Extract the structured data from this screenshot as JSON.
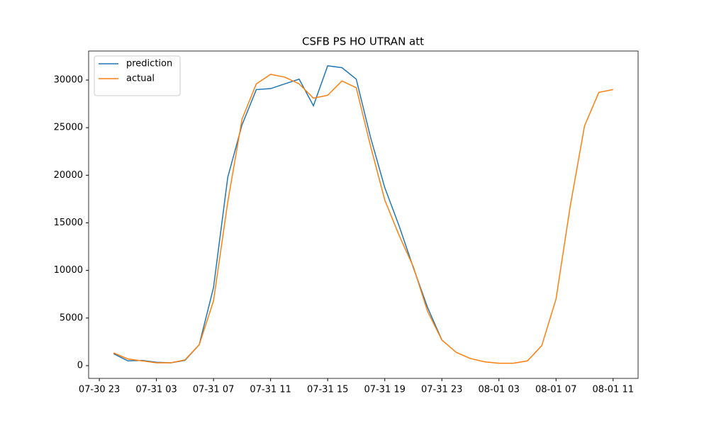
{
  "chart_data": {
    "type": "line",
    "title": "CSFB PS HO UTRAN att",
    "x": [
      "07-31 00",
      "07-31 01",
      "07-31 02",
      "07-31 03",
      "07-31 04",
      "07-31 05",
      "07-31 06",
      "07-31 07",
      "07-31 08",
      "07-31 09",
      "07-31 10",
      "07-31 11",
      "07-31 12",
      "07-31 13",
      "07-31 14",
      "07-31 15",
      "07-31 16",
      "07-31 17",
      "07-31 18",
      "07-31 19",
      "07-31 20",
      "07-31 21",
      "07-31 22",
      "07-31 23",
      "08-01 00",
      "08-01 01",
      "08-01 02",
      "08-01 03",
      "08-01 04",
      "08-01 05",
      "08-01 06",
      "08-01 07",
      "08-01 08",
      "08-01 09",
      "08-01 10",
      "08-01 11"
    ],
    "series": [
      {
        "name": "prediction",
        "color": "#1f77b4",
        "values": [
          1250,
          500,
          550,
          350,
          300,
          550,
          2200,
          8200,
          19800,
          25300,
          29000,
          29100,
          29600,
          30100,
          27300,
          31500,
          31300,
          30100,
          24000,
          18700,
          14700,
          10300,
          6100,
          2700,
          null,
          null,
          null,
          null,
          null,
          null,
          null,
          null,
          null,
          null,
          null,
          null
        ]
      },
      {
        "name": "actual",
        "color": "#ff7f0e",
        "values": [
          1340,
          700,
          500,
          300,
          300,
          600,
          2200,
          6800,
          17200,
          25900,
          29600,
          30600,
          30300,
          29600,
          28100,
          28400,
          29900,
          29200,
          23100,
          17400,
          13700,
          10400,
          5700,
          2700,
          1400,
          750,
          400,
          250,
          250,
          500,
          2100,
          7000,
          16800,
          25200,
          28700,
          29000
        ]
      }
    ],
    "xlim": [
      "07-30 22:15",
      "08-01 12:45"
    ],
    "xticks": [
      "07-30 23",
      "07-31 03",
      "07-31 07",
      "07-31 11",
      "07-31 15",
      "07-31 19",
      "07-31 23",
      "08-01 03",
      "08-01 07",
      "08-01 11"
    ],
    "ylim": [
      -1340,
      33050
    ],
    "yticks": [
      0,
      5000,
      10000,
      15000,
      20000,
      25000,
      30000
    ],
    "legend": "upper left"
  }
}
